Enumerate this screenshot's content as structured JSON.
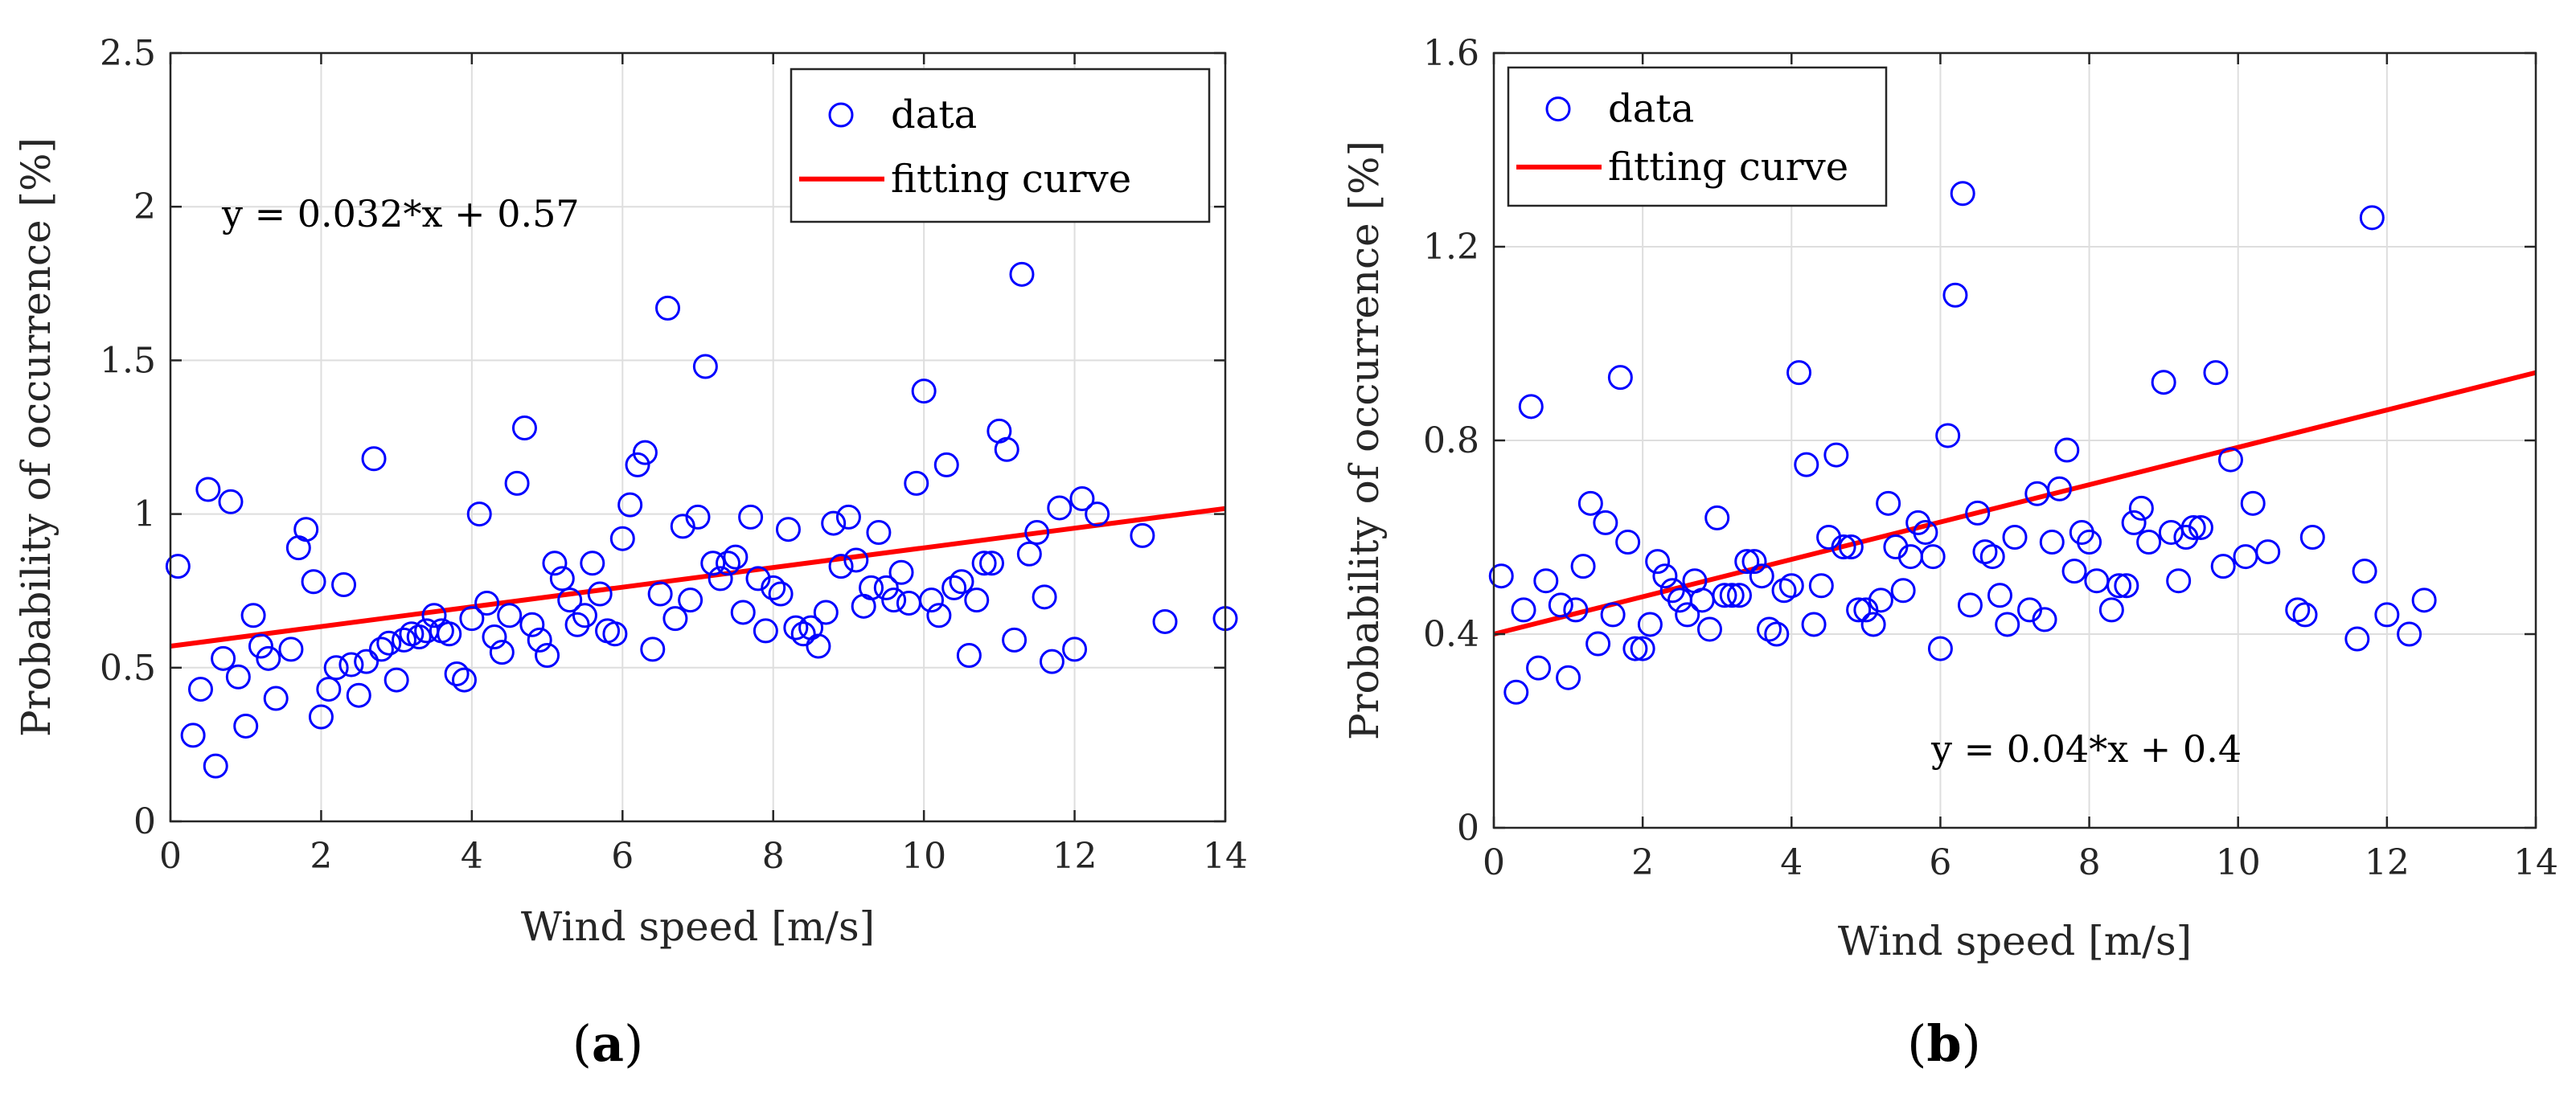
{
  "chart_data": [
    {
      "type": "scatter",
      "panel_label": "a",
      "xlabel": "Wind speed [m/s]",
      "ylabel": "Probability of occurrence [%]",
      "xlim": [
        0,
        14
      ],
      "ylim": [
        0,
        2.5
      ],
      "xticks": [
        "0",
        "2",
        "4",
        "6",
        "8",
        "10",
        "12",
        "14"
      ],
      "yticks": [
        "0",
        "0.5",
        "1",
        "1.5",
        "2",
        "2.5"
      ],
      "grid": true,
      "legend_position": "top-right",
      "annotation": "y = 0.032*x + 0.57",
      "colors": {
        "data": "#0000ff",
        "fit": "#ff0000"
      },
      "series": [
        {
          "name": "data",
          "kind": "scatter",
          "points": [
            [
              0.1,
              0.83
            ],
            [
              0.3,
              0.28
            ],
            [
              0.4,
              0.43
            ],
            [
              0.5,
              1.08
            ],
            [
              0.6,
              0.18
            ],
            [
              0.7,
              0.53
            ],
            [
              0.8,
              1.04
            ],
            [
              0.9,
              0.47
            ],
            [
              1.0,
              0.31
            ],
            [
              1.1,
              0.67
            ],
            [
              1.2,
              0.57
            ],
            [
              1.3,
              0.53
            ],
            [
              1.4,
              0.4
            ],
            [
              1.6,
              0.56
            ],
            [
              1.7,
              0.89
            ],
            [
              1.8,
              0.95
            ],
            [
              1.9,
              0.78
            ],
            [
              2.0,
              0.34
            ],
            [
              2.1,
              0.43
            ],
            [
              2.2,
              0.5
            ],
            [
              2.3,
              0.77
            ],
            [
              2.4,
              0.51
            ],
            [
              2.5,
              0.41
            ],
            [
              2.6,
              0.52
            ],
            [
              2.7,
              1.18
            ],
            [
              2.8,
              0.56
            ],
            [
              2.9,
              0.58
            ],
            [
              3.0,
              0.46
            ],
            [
              3.1,
              0.59
            ],
            [
              3.2,
              0.61
            ],
            [
              3.3,
              0.6
            ],
            [
              3.4,
              0.62
            ],
            [
              3.5,
              0.67
            ],
            [
              3.6,
              0.62
            ],
            [
              3.7,
              0.61
            ],
            [
              3.8,
              0.48
            ],
            [
              3.9,
              0.46
            ],
            [
              4.0,
              0.66
            ],
            [
              4.1,
              1.0
            ],
            [
              4.2,
              0.71
            ],
            [
              4.3,
              0.6
            ],
            [
              4.4,
              0.55
            ],
            [
              4.5,
              0.67
            ],
            [
              4.6,
              1.1
            ],
            [
              4.7,
              1.28
            ],
            [
              4.8,
              0.64
            ],
            [
              4.9,
              0.59
            ],
            [
              5.0,
              0.54
            ],
            [
              5.1,
              0.84
            ],
            [
              5.2,
              0.79
            ],
            [
              5.3,
              0.72
            ],
            [
              5.4,
              0.64
            ],
            [
              5.5,
              0.67
            ],
            [
              5.6,
              0.84
            ],
            [
              5.7,
              0.74
            ],
            [
              5.8,
              0.62
            ],
            [
              5.9,
              0.61
            ],
            [
              6.0,
              0.92
            ],
            [
              6.1,
              1.03
            ],
            [
              6.2,
              1.16
            ],
            [
              6.3,
              1.2
            ],
            [
              6.4,
              0.56
            ],
            [
              6.5,
              0.74
            ],
            [
              6.6,
              1.67
            ],
            [
              6.7,
              0.66
            ],
            [
              6.8,
              0.96
            ],
            [
              6.9,
              0.72
            ],
            [
              7.0,
              0.99
            ],
            [
              7.1,
              1.48
            ],
            [
              7.2,
              0.84
            ],
            [
              7.3,
              0.79
            ],
            [
              7.4,
              0.84
            ],
            [
              7.5,
              0.86
            ],
            [
              7.6,
              0.68
            ],
            [
              7.7,
              0.99
            ],
            [
              7.8,
              0.79
            ],
            [
              7.9,
              0.62
            ],
            [
              8.0,
              0.76
            ],
            [
              8.1,
              0.74
            ],
            [
              8.2,
              0.95
            ],
            [
              8.3,
              0.63
            ],
            [
              8.4,
              0.61
            ],
            [
              8.5,
              0.63
            ],
            [
              8.6,
              0.57
            ],
            [
              8.7,
              0.68
            ],
            [
              8.8,
              0.97
            ],
            [
              8.9,
              0.83
            ],
            [
              9.0,
              0.99
            ],
            [
              9.1,
              0.85
            ],
            [
              9.2,
              0.7
            ],
            [
              9.3,
              0.76
            ],
            [
              9.4,
              0.94
            ],
            [
              9.5,
              0.76
            ],
            [
              9.6,
              0.72
            ],
            [
              9.7,
              0.81
            ],
            [
              9.8,
              0.71
            ],
            [
              9.9,
              1.1
            ],
            [
              10.0,
              1.4
            ],
            [
              10.1,
              0.72
            ],
            [
              10.2,
              0.67
            ],
            [
              10.3,
              1.16
            ],
            [
              10.4,
              0.76
            ],
            [
              10.5,
              0.78
            ],
            [
              10.6,
              0.54
            ],
            [
              10.7,
              0.72
            ],
            [
              10.8,
              0.84
            ],
            [
              10.9,
              0.84
            ],
            [
              11.0,
              1.27
            ],
            [
              11.1,
              1.21
            ],
            [
              11.2,
              0.59
            ],
            [
              11.3,
              1.78
            ],
            [
              11.4,
              0.87
            ],
            [
              11.5,
              0.94
            ],
            [
              11.6,
              0.73
            ],
            [
              11.7,
              0.52
            ],
            [
              11.8,
              1.02
            ],
            [
              12.0,
              0.56
            ],
            [
              12.1,
              1.05
            ],
            [
              12.3,
              1.0
            ],
            [
              12.9,
              0.93
            ],
            [
              13.2,
              0.65
            ],
            [
              14.0,
              0.66
            ]
          ]
        },
        {
          "name": "fitting curve",
          "kind": "line",
          "points": [
            [
              0,
              0.57
            ],
            [
              14,
              1.018
            ]
          ]
        }
      ]
    },
    {
      "type": "scatter",
      "panel_label": "b",
      "xlabel": "Wind speed [m/s]",
      "ylabel": "Probability of occurrence [%]",
      "xlim": [
        0,
        14
      ],
      "ylim": [
        0,
        1.6
      ],
      "xticks": [
        "0",
        "2",
        "4",
        "6",
        "8",
        "10",
        "12",
        "14"
      ],
      "yticks": [
        "0",
        "0.4",
        "0.8",
        "1.2",
        "1.6"
      ],
      "grid": true,
      "legend_position": "top-left",
      "annotation": "y = 0.04*x + 0.4",
      "colors": {
        "data": "#0000ff",
        "fit": "#ff0000"
      },
      "series": [
        {
          "name": "data",
          "kind": "scatter",
          "points": [
            [
              0.1,
              0.52
            ],
            [
              0.3,
              0.28
            ],
            [
              0.4,
              0.45
            ],
            [
              0.5,
              0.87
            ],
            [
              0.6,
              0.33
            ],
            [
              0.7,
              0.51
            ],
            [
              0.9,
              0.46
            ],
            [
              1.0,
              0.31
            ],
            [
              1.1,
              0.45
            ],
            [
              1.2,
              0.54
            ],
            [
              1.3,
              0.67
            ],
            [
              1.4,
              0.38
            ],
            [
              1.5,
              0.63
            ],
            [
              1.6,
              0.44
            ],
            [
              1.7,
              0.93
            ],
            [
              1.8,
              0.59
            ],
            [
              1.9,
              0.37
            ],
            [
              2.0,
              0.37
            ],
            [
              2.1,
              0.42
            ],
            [
              2.2,
              0.55
            ],
            [
              2.3,
              0.52
            ],
            [
              2.4,
              0.49
            ],
            [
              2.5,
              0.47
            ],
            [
              2.6,
              0.44
            ],
            [
              2.7,
              0.51
            ],
            [
              2.8,
              0.47
            ],
            [
              2.9,
              0.41
            ],
            [
              3.0,
              0.64
            ],
            [
              3.1,
              0.48
            ],
            [
              3.2,
              0.48
            ],
            [
              3.3,
              0.48
            ],
            [
              3.4,
              0.55
            ],
            [
              3.5,
              0.55
            ],
            [
              3.6,
              0.52
            ],
            [
              3.7,
              0.41
            ],
            [
              3.8,
              0.4
            ],
            [
              3.9,
              0.49
            ],
            [
              4.0,
              0.5
            ],
            [
              4.1,
              0.94
            ],
            [
              4.2,
              0.75
            ],
            [
              4.3,
              0.42
            ],
            [
              4.4,
              0.5
            ],
            [
              4.5,
              0.6
            ],
            [
              4.6,
              0.77
            ],
            [
              4.7,
              0.58
            ],
            [
              4.8,
              0.58
            ],
            [
              4.9,
              0.45
            ],
            [
              5.0,
              0.45
            ],
            [
              5.1,
              0.42
            ],
            [
              5.2,
              0.47
            ],
            [
              5.3,
              0.67
            ],
            [
              5.4,
              0.58
            ],
            [
              5.5,
              0.49
            ],
            [
              5.6,
              0.56
            ],
            [
              5.7,
              0.63
            ],
            [
              5.8,
              0.61
            ],
            [
              5.9,
              0.56
            ],
            [
              6.0,
              0.37
            ],
            [
              6.1,
              0.81
            ],
            [
              6.2,
              1.1
            ],
            [
              6.3,
              1.31
            ],
            [
              6.4,
              0.46
            ],
            [
              6.5,
              0.65
            ],
            [
              6.6,
              0.57
            ],
            [
              6.7,
              0.56
            ],
            [
              6.8,
              0.48
            ],
            [
              6.9,
              0.42
            ],
            [
              7.0,
              0.6
            ],
            [
              7.2,
              0.45
            ],
            [
              7.3,
              0.69
            ],
            [
              7.4,
              0.43
            ],
            [
              7.5,
              0.59
            ],
            [
              7.6,
              0.7
            ],
            [
              7.7,
              0.78
            ],
            [
              7.8,
              0.53
            ],
            [
              7.9,
              0.61
            ],
            [
              8.0,
              0.59
            ],
            [
              8.1,
              0.51
            ],
            [
              8.3,
              0.45
            ],
            [
              8.4,
              0.5
            ],
            [
              8.5,
              0.5
            ],
            [
              8.6,
              0.63
            ],
            [
              8.7,
              0.66
            ],
            [
              8.8,
              0.59
            ],
            [
              9.0,
              0.92
            ],
            [
              9.1,
              0.61
            ],
            [
              9.2,
              0.51
            ],
            [
              9.3,
              0.6
            ],
            [
              9.4,
              0.62
            ],
            [
              9.5,
              0.62
            ],
            [
              9.7,
              0.94
            ],
            [
              9.8,
              0.54
            ],
            [
              9.9,
              0.76
            ],
            [
              10.1,
              0.56
            ],
            [
              10.2,
              0.67
            ],
            [
              10.4,
              0.57
            ],
            [
              10.8,
              0.45
            ],
            [
              10.9,
              0.44
            ],
            [
              11.0,
              0.6
            ],
            [
              11.6,
              0.39
            ],
            [
              11.7,
              0.53
            ],
            [
              11.8,
              1.26
            ],
            [
              12.0,
              0.44
            ],
            [
              12.3,
              0.4
            ],
            [
              12.5,
              0.47
            ]
          ]
        },
        {
          "name": "fitting curve",
          "kind": "line",
          "points": [
            [
              0,
              0.4
            ],
            [
              14,
              0.94
            ]
          ]
        }
      ]
    }
  ]
}
